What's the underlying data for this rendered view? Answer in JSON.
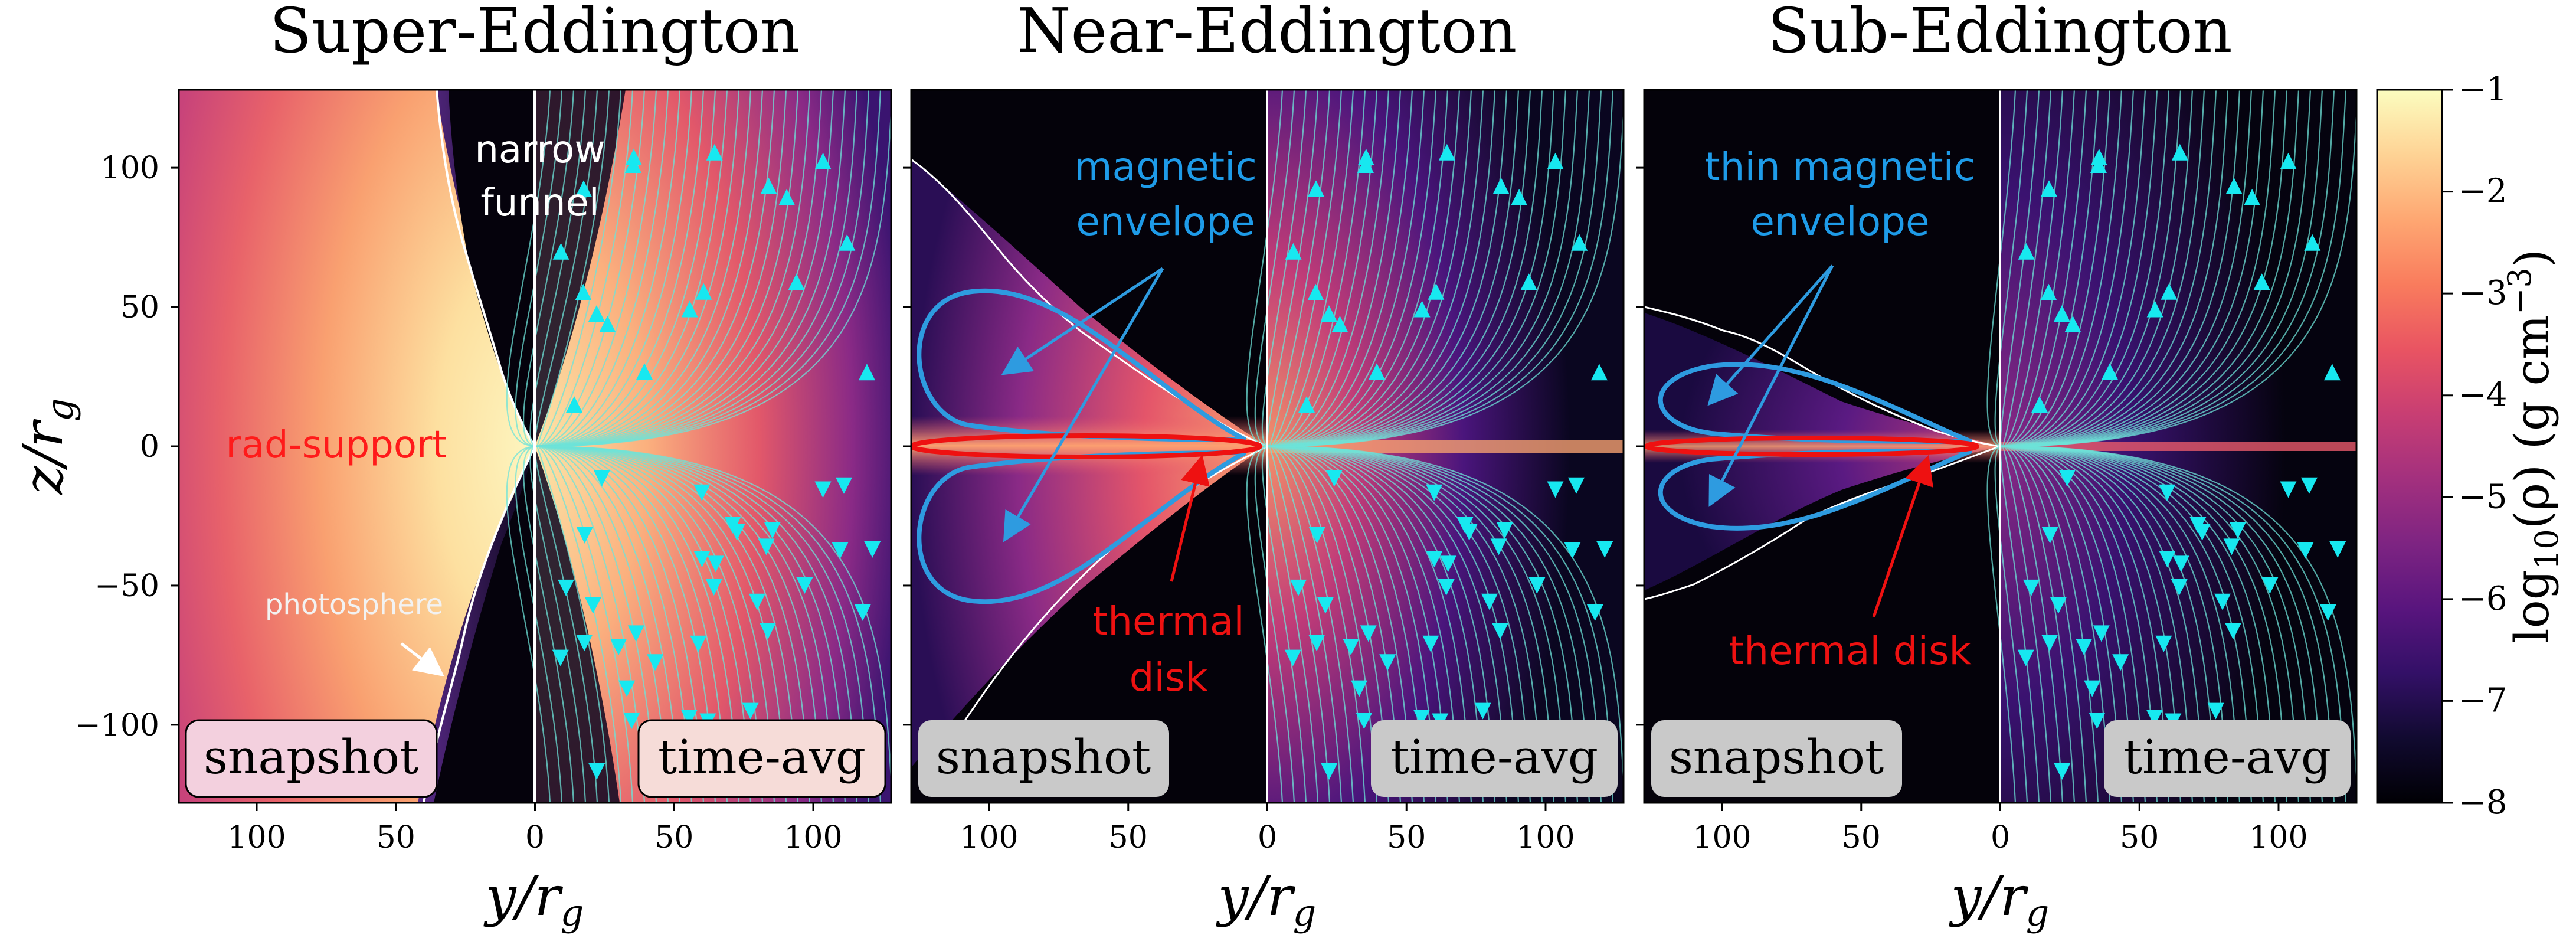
{
  "figure": {
    "panels": [
      {
        "title": "Super-Eddington",
        "label_left": "snapshot",
        "label_right": "time-avg",
        "annotations": {
          "rad_support": "rad-support",
          "narrow_funnel_line1": "narrow",
          "narrow_funnel_line2": "funnel",
          "photosphere": "photosphere"
        }
      },
      {
        "title": "Near-Eddington",
        "label_left": "snapshot",
        "label_right": "time-avg",
        "annotations": {
          "envelope_line1": "magnetic",
          "envelope_line2": "envelope",
          "disk_line1": "thermal",
          "disk_line2": "disk"
        }
      },
      {
        "title": "Sub-Eddington",
        "label_left": "snapshot",
        "label_right": "time-avg",
        "annotations": {
          "envelope_line1": "thin magnetic",
          "envelope_line2": "envelope",
          "disk": "thermal disk"
        }
      }
    ],
    "y_axis": {
      "label_main": "z/r",
      "label_sub": "g",
      "ticks": [
        "100",
        "50",
        "0",
        "−50",
        "−100"
      ]
    },
    "x_axis": {
      "label_main": "y/r",
      "label_sub": "g",
      "ticks": [
        "100",
        "50",
        "0",
        "50",
        "100"
      ]
    },
    "colorbar": {
      "label_prefix": "log",
      "label_sub": "10",
      "label_mid": "(ρ)  (g cm",
      "label_sup": "−3",
      "label_end": ")",
      "ticks": [
        "−1",
        "−2",
        "−3",
        "−4",
        "−5",
        "−6",
        "−7",
        "−8"
      ],
      "stops": [
        "#fcfdbf",
        "#fed395",
        "#fea772",
        "#f97c5d",
        "#e95462",
        "#c83e73",
        "#a3307e",
        "#7e2482",
        "#59157e",
        "#331067",
        "#110a30",
        "#000004"
      ]
    },
    "colors": {
      "streamline": "#6ee3d8",
      "arrow": "#17e8f0",
      "envelope": "#2e9be0",
      "disk": "#ee1111",
      "photosphere": "#ffffff",
      "rad_support_text": "#ff1a1a",
      "envelope_text": "#1e9be8"
    }
  }
}
